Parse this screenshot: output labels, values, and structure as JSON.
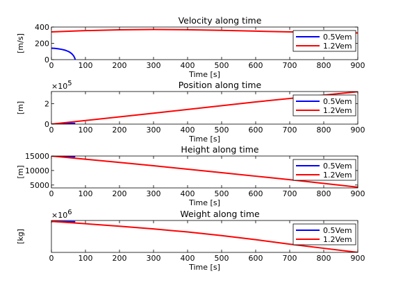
{
  "chart_data": [
    {
      "type": "line",
      "title": "Velocity along time",
      "xlabel": "Time [s]",
      "ylabel": "[m/s]",
      "xlim": [
        0,
        900
      ],
      "ylim": [
        0,
        400
      ],
      "x_ticks": [
        "0",
        "100",
        "200",
        "300",
        "400",
        "500",
        "600",
        "700",
        "800",
        "900"
      ],
      "y_ticks": [
        "0",
        "200",
        "400"
      ],
      "y_exponent": "",
      "grid": false,
      "legend_position": "top-right",
      "series": [
        {
          "name": "0.5Vem",
          "color": "#0000ff",
          "x": [
            0,
            10,
            20,
            30,
            40,
            50,
            55,
            60,
            65,
            68,
            70
          ],
          "y": [
            140,
            138,
            133,
            126,
            116,
            100,
            88,
            72,
            48,
            25,
            0
          ]
        },
        {
          "name": "1.2Vem",
          "color": "#ff0000",
          "x": [
            0,
            100,
            200,
            300,
            400,
            500,
            600,
            700,
            800,
            900
          ],
          "y": [
            340,
            356,
            366,
            370,
            367,
            360,
            350,
            340,
            332,
            328
          ]
        }
      ]
    },
    {
      "type": "line",
      "title": "Position along time",
      "xlabel": "Time [s]",
      "ylabel": "[m]",
      "xlim": [
        0,
        900
      ],
      "ylim": [
        0,
        320000
      ],
      "x_ticks": [
        "0",
        "100",
        "200",
        "300",
        "400",
        "500",
        "600",
        "700",
        "800",
        "900"
      ],
      "y_ticks": [
        "0",
        "2"
      ],
      "y_exponent": "5",
      "grid": false,
      "legend_position": "top-right",
      "series": [
        {
          "name": "0.5Vem",
          "color": "#0000ff",
          "x": [
            0,
            20,
            40,
            60,
            70
          ],
          "y": [
            0,
            2800,
            5400,
            7500,
            8000
          ]
        },
        {
          "name": "1.2Vem",
          "color": "#ff0000",
          "x": [
            0,
            300,
            600,
            900
          ],
          "y": [
            0,
            107000,
            218000,
            318000
          ]
        }
      ]
    },
    {
      "type": "line",
      "title": "Height along time",
      "xlabel": "Time [s]",
      "ylabel": "[m]",
      "xlim": [
        0,
        900
      ],
      "ylim": [
        4000,
        15000
      ],
      "x_ticks": [
        "0",
        "100",
        "200",
        "300",
        "400",
        "500",
        "600",
        "700",
        "800",
        "900"
      ],
      "y_ticks": [
        "5000",
        "10000",
        "15000"
      ],
      "y_exponent": "",
      "grid": false,
      "legend_position": "top-right",
      "series": [
        {
          "name": "0.5Vem",
          "color": "#0000ff",
          "x": [
            0,
            35,
            70
          ],
          "y": [
            15000,
            14900,
            14750
          ]
        },
        {
          "name": "1.2Vem",
          "color": "#ff0000",
          "x": [
            0,
            100,
            200,
            300,
            400,
            500,
            600,
            700,
            800,
            900
          ],
          "y": [
            15000,
            13900,
            12800,
            11650,
            10450,
            9250,
            8050,
            6850,
            5550,
            4250
          ]
        }
      ]
    },
    {
      "type": "line",
      "title": "Weight along time",
      "xlabel": "Time [s]",
      "ylabel": "[kg]",
      "xlim": [
        0,
        900
      ],
      "ylim": [
        1.3177,
        1.3355
      ],
      "x_ticks": [
        "0",
        "100",
        "200",
        "300",
        "400",
        "500",
        "600",
        "700",
        "800",
        "900"
      ],
      "y_ticks": [
        "1.32",
        "1.325",
        "1.33"
      ],
      "y_exponent": "6",
      "grid": false,
      "legend_position": "top-right",
      "series": [
        {
          "name": "0.5Vem",
          "color": "#0000ff",
          "x": [
            0,
            35,
            70
          ],
          "y": [
            1.3349,
            1.33485,
            1.3348
          ]
        },
        {
          "name": "1.2Vem",
          "color": "#ff0000",
          "x": [
            0,
            100,
            200,
            300,
            400,
            500,
            600,
            700,
            800,
            900
          ],
          "y": [
            1.335,
            1.3337,
            1.3323,
            1.3308,
            1.3291,
            1.3271,
            1.3248,
            1.3223,
            1.32,
            1.3177
          ]
        }
      ]
    }
  ]
}
